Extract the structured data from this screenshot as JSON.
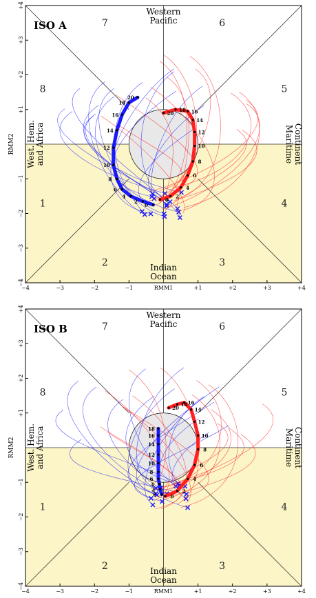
{
  "panel_titles": [
    "ISO A",
    "ISO B"
  ],
  "phase_labels": [
    "1",
    "2",
    "3",
    "4",
    "5",
    "6",
    "7",
    "8"
  ],
  "region_labels": {
    "top": [
      "Western",
      "Pacific"
    ],
    "bottom": [
      "Indian",
      "Ocean"
    ],
    "left": [
      "West. Hem.",
      "and Africa"
    ],
    "right": [
      "Maritime",
      "Continent"
    ]
  },
  "axis_labels": {
    "x": "RMM1",
    "y": "RMM2"
  },
  "x_tick_labels": [
    "−4",
    "−3",
    "−2",
    "−1",
    "+1",
    "+2",
    "+3",
    "+4"
  ],
  "y_tick_labels": [
    "−4",
    "−3",
    "−2",
    "−1",
    "+1",
    "+2",
    "+3",
    "+4"
  ],
  "colors": {
    "blue": "#1a1aff",
    "red": "#ff2020",
    "shade": "#fbf5c7",
    "circle": "#e8e8e8",
    "axes": "#000000"
  },
  "chart_data": [
    {
      "type": "line",
      "title": "ISO A",
      "xlabel": "RMM1",
      "ylabel": "RMM2",
      "xlim": [
        -4,
        4
      ],
      "ylim": [
        -4,
        4
      ],
      "shaded_region": "RMM2 < 0",
      "grid": false,
      "series": [
        {
          "color": "blue",
          "day_labels": [
            "20",
            "18",
            "16",
            "14",
            "12",
            "10",
            "8",
            "6",
            "4",
            "2",
            "0"
          ],
          "points": [
            [
              -0.75,
              1.35
            ],
            [
              -1.0,
              1.2
            ],
            [
              -1.2,
              0.85
            ],
            [
              -1.35,
              0.4
            ],
            [
              -1.45,
              -0.1
            ],
            [
              -1.45,
              -0.6
            ],
            [
              -1.35,
              -1.0
            ],
            [
              -1.2,
              -1.3
            ],
            [
              -0.95,
              -1.5
            ],
            [
              -0.6,
              -1.65
            ],
            [
              -0.3,
              -1.75
            ]
          ]
        },
        {
          "color": "red",
          "day_labels": [
            "20",
            "18",
            "16",
            "14",
            "12",
            "10",
            "8",
            "6",
            "4",
            "2",
            "0"
          ],
          "points": [
            [
              0.0,
              0.9
            ],
            [
              0.35,
              1.0
            ],
            [
              0.7,
              0.95
            ],
            [
              0.85,
              0.7
            ],
            [
              0.9,
              0.35
            ],
            [
              0.9,
              -0.05
            ],
            [
              0.85,
              -0.5
            ],
            [
              0.7,
              -0.9
            ],
            [
              0.5,
              -1.25
            ],
            [
              0.2,
              -1.5
            ],
            [
              -0.1,
              -1.6
            ]
          ]
        }
      ]
    },
    {
      "type": "line",
      "title": "ISO B",
      "xlabel": "RMM1",
      "ylabel": "RMM2",
      "xlim": [
        -4,
        4
      ],
      "ylim": [
        -4,
        4
      ],
      "shaded_region": "RMM2 < 0",
      "grid": false,
      "series": [
        {
          "color": "blue",
          "day_labels": [
            "18",
            "16",
            "14",
            "12",
            "10",
            "8",
            "6",
            "4",
            "2",
            "0"
          ],
          "points": [
            [
              -0.15,
              0.55
            ],
            [
              -0.15,
              0.35
            ],
            [
              -0.15,
              0.1
            ],
            [
              -0.15,
              -0.2
            ],
            [
              -0.15,
              -0.45
            ],
            [
              -0.15,
              -0.7
            ],
            [
              -0.15,
              -0.9
            ],
            [
              -0.12,
              -1.05
            ],
            [
              -0.1,
              -1.2
            ],
            [
              -0.05,
              -1.35
            ]
          ]
        },
        {
          "color": "red",
          "day_labels": [
            "20",
            "18",
            "16",
            "14",
            "12",
            "10",
            "8",
            "6",
            "4",
            "2",
            "0"
          ],
          "points": [
            [
              0.15,
              1.15
            ],
            [
              0.4,
              1.25
            ],
            [
              0.6,
              1.3
            ],
            [
              0.8,
              1.1
            ],
            [
              0.9,
              0.75
            ],
            [
              1.0,
              0.35
            ],
            [
              1.0,
              -0.05
            ],
            [
              0.9,
              -0.5
            ],
            [
              0.7,
              -0.9
            ],
            [
              0.4,
              -1.25
            ],
            [
              0.05,
              -1.4
            ]
          ]
        }
      ]
    }
  ]
}
